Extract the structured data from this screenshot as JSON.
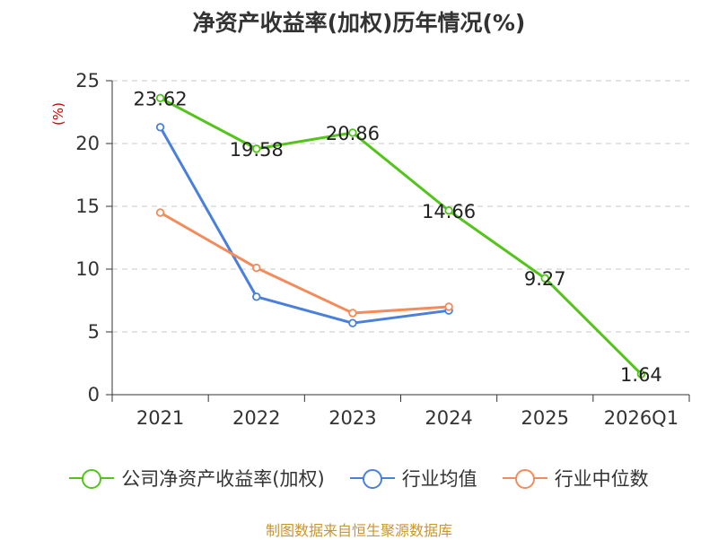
{
  "chart_data": {
    "type": "line",
    "title": "净资产收益率(加权)历年情况(%)",
    "ylabel": "(%)",
    "xlabel": "",
    "categories": [
      "2021",
      "2022",
      "2023",
      "2024",
      "2025",
      "2026Q1"
    ],
    "yticks": [
      0,
      5,
      10,
      15,
      20,
      25
    ],
    "ylim": [
      0,
      25
    ],
    "grid": "horizontal dashed",
    "legend_position": "bottom",
    "series": [
      {
        "name": "公司净资产收益率(加权)",
        "color": "#52c41a",
        "values": [
          23.62,
          19.58,
          20.86,
          14.66,
          9.27,
          1.64
        ],
        "labels": [
          "23.62",
          "19.58",
          "20.86",
          "14.66",
          "9.27",
          "1.64"
        ],
        "show_labels": true
      },
      {
        "name": "行业均值",
        "color": "#4a7fdc",
        "values": [
          21.3,
          7.8,
          5.7,
          6.7,
          null,
          null
        ],
        "show_labels": false
      },
      {
        "name": "行业中位数",
        "color": "#f48b5b",
        "values": [
          14.5,
          10.1,
          6.5,
          7.0,
          null,
          null
        ],
        "show_labels": false
      }
    ]
  },
  "source": "制图数据来自恒生聚源数据库"
}
